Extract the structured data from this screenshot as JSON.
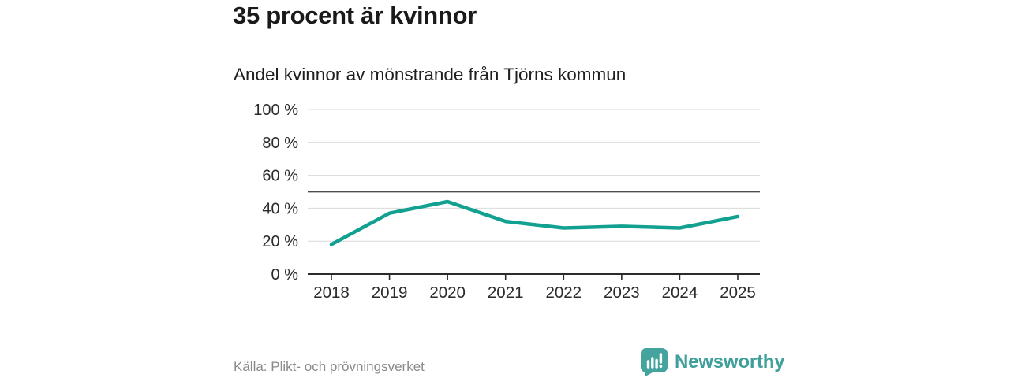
{
  "header": {
    "title": "35 procent är kvinnor",
    "subtitle": "Andel kvinnor av mönstrande från Tjörns kommun"
  },
  "chart_data": {
    "type": "line",
    "categories": [
      "2018",
      "2019",
      "2020",
      "2021",
      "2022",
      "2023",
      "2024",
      "2025"
    ],
    "series": [
      {
        "name": "Andel kvinnor av mönstrande",
        "values": [
          18,
          37,
          44,
          32,
          28,
          29,
          28,
          35
        ]
      }
    ],
    "title": "Andel kvinnor av mönstrande från Tjörns kommun",
    "xlabel": "",
    "ylabel": "",
    "ylim": [
      0,
      100
    ],
    "yticks": [
      0,
      20,
      40,
      60,
      80,
      100
    ],
    "ytick_labels": [
      "0 %",
      "20 %",
      "40 %",
      "60 %",
      "80 %",
      "100 %"
    ],
    "reference_line": 50,
    "grid": true,
    "legend_position": "none"
  },
  "footer": {
    "source": "Källa: Plikt- och prövningsverket",
    "brand": "Newsworthy"
  },
  "colors": {
    "line": "#12a191",
    "brand_teal": "#3f9f9a",
    "logo_bubble": "#45a39e",
    "title_text": "#1a1a1a",
    "axis_text": "#2b2b2b",
    "source_text": "#8a8a8a",
    "gridline": "#d9d9d9",
    "reference_line": "#4d4d4d",
    "axis_line": "#2b2b2b"
  }
}
